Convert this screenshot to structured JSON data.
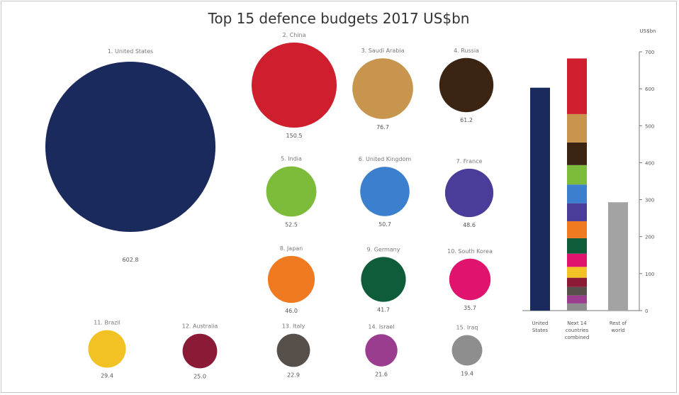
{
  "chart_data": {
    "type": "bubble",
    "title": "Top 15 defence budgets 2017 US$bn",
    "bubbles": [
      {
        "label": "1. United States",
        "value": 602.8,
        "value_label": "602.8",
        "color": "#1b2a5c"
      },
      {
        "label": "2. China",
        "value": 150.5,
        "value_label": "150.5",
        "color": "#cf1f2e"
      },
      {
        "label": "3. Saudi Arabia",
        "value": 76.7,
        "value_label": "76.7",
        "color": "#c8954e"
      },
      {
        "label": "4. Russia",
        "value": 61.2,
        "value_label": "61.2",
        "color": "#3b2512"
      },
      {
        "label": "5. India",
        "value": 52.5,
        "value_label": "52.5",
        "color": "#7dbb3a"
      },
      {
        "label": "6. United Kingdom",
        "value": 50.7,
        "value_label": "50.7",
        "color": "#3d7fcf"
      },
      {
        "label": "7. France",
        "value": 48.6,
        "value_label": "48.6",
        "color": "#4a3d9a"
      },
      {
        "label": "8. Japan",
        "value": 46.0,
        "value_label": "46.0",
        "color": "#f07a22"
      },
      {
        "label": "9. Germany",
        "value": 41.7,
        "value_label": "41.7",
        "color": "#0e5c3a"
      },
      {
        "label": "10. South Korea",
        "value": 35.7,
        "value_label": "35.7",
        "color": "#e0146e"
      },
      {
        "label": "11. Brazil",
        "value": 29.4,
        "value_label": "29.4",
        "color": "#f2c224"
      },
      {
        "label": "12. Australia",
        "value": 25.0,
        "value_label": "25.0",
        "color": "#8a1a36"
      },
      {
        "label": "13. Italy",
        "value": 22.9,
        "value_label": "22.9",
        "color": "#57504a"
      },
      {
        "label": "14. Israel",
        "value": 21.6,
        "value_label": "21.6",
        "color": "#9a3d8f"
      },
      {
        "label": "15. Iraq",
        "value": 19.4,
        "value_label": "19.4",
        "color": "#8e8e8e"
      }
    ],
    "bars": {
      "ylabel": "US$bn",
      "ylim": [
        0,
        700
      ],
      "ticks": [
        0,
        100,
        200,
        300,
        400,
        500,
        600,
        700
      ],
      "tick_labels": [
        "0",
        "100",
        "200",
        "300",
        "400",
        "500",
        "600",
        "700"
      ],
      "columns": [
        {
          "label": "United States",
          "total": 602.8,
          "color": "#1b2a5c"
        },
        {
          "label": "Next 14 countries combined",
          "stacked": true
        },
        {
          "label": "Rest of world",
          "total": 293,
          "color": "#a3a3a3"
        }
      ]
    }
  }
}
